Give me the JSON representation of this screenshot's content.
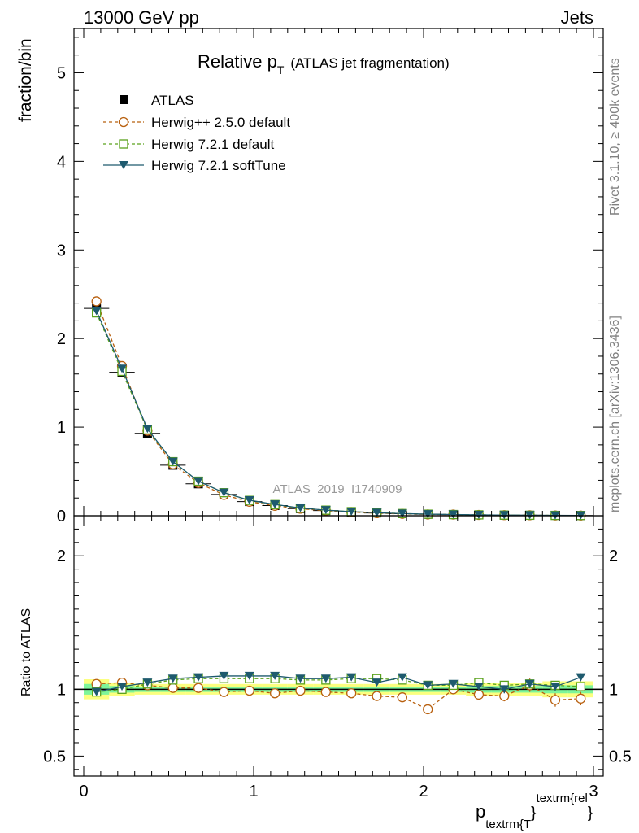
{
  "header": {
    "left": "13000 GeV pp",
    "right": "Jets",
    "side_label_1": "Rivet 3.1.10, ≥ 400k events",
    "side_label_2": "mcplots.cern.ch [arXiv:1306.3436]",
    "watermark": "ATLAS_2019_I1740909"
  },
  "colors": {
    "atlas": "#000000",
    "herwigpp": "#b8600f",
    "herwig721": "#5aa21c",
    "softtune": "#1e5a6e",
    "band_yellow": "#fbff7f",
    "band_green": "#7df59a"
  },
  "chart_data": [
    {
      "type": "line",
      "title": "Relative p",
      "title_sub": "T",
      "title_suffix": "(ATLAS jet fragmentation)",
      "ylabel": "fraction/bin",
      "ylim": [
        0,
        5.5
      ],
      "yticks": [
        0,
        1,
        2,
        3,
        4,
        5
      ],
      "ytick_labels": [
        "0",
        "1",
        "2",
        "3",
        "4",
        "5"
      ],
      "xlim": [
        0,
        3
      ],
      "x": [
        0.075,
        0.225,
        0.375,
        0.525,
        0.675,
        0.825,
        0.975,
        1.125,
        1.275,
        1.425,
        1.575,
        1.725,
        1.875,
        2.025,
        2.175,
        2.325,
        2.475,
        2.625,
        2.775,
        2.925
      ],
      "series": [
        {
          "name": "ATLAS",
          "style": "data",
          "values": [
            2.34,
            1.62,
            0.93,
            0.57,
            0.36,
            0.24,
            0.16,
            0.115,
            0.08,
            0.058,
            0.042,
            0.031,
            0.023,
            0.017,
            0.013,
            0.0095,
            0.007,
            0.0052,
            0.0038,
            0.0028
          ]
        },
        {
          "name": "Herwig++ 2.5.0 default",
          "style": "dashed-circle",
          "values": [
            2.42,
            1.69,
            0.96,
            0.58,
            0.37,
            0.235,
            0.158,
            0.112,
            0.079,
            0.057,
            0.041,
            0.029,
            0.021,
            0.0145,
            0.013,
            0.0092,
            0.0067,
            0.0054,
            0.0035,
            0.0026
          ]
        },
        {
          "name": "Herwig 7.2.1 default",
          "style": "dashed-square",
          "values": [
            2.29,
            1.63,
            0.97,
            0.61,
            0.39,
            0.26,
            0.173,
            0.126,
            0.086,
            0.063,
            0.046,
            0.034,
            0.025,
            0.0175,
            0.0135,
            0.0099,
            0.0071,
            0.0055,
            0.0039,
            0.0029
          ]
        },
        {
          "name": "Herwig 7.2.1 softTune",
          "style": "solid-triangle",
          "values": [
            2.31,
            1.66,
            0.98,
            0.61,
            0.39,
            0.26,
            0.175,
            0.127,
            0.087,
            0.063,
            0.046,
            0.033,
            0.024,
            0.0176,
            0.0136,
            0.0097,
            0.0069,
            0.0054,
            0.0038,
            0.003
          ]
        }
      ]
    },
    {
      "type": "line",
      "ylabel": "Ratio to ATLAS",
      "ylim": [
        0.35,
        2.3
      ],
      "yticks": [
        0.5,
        1,
        2
      ],
      "ytick_labels": [
        "0.5",
        "1",
        "2"
      ],
      "xlim": [
        0,
        3
      ],
      "xticks": [
        0,
        1,
        2,
        3
      ],
      "xtick_labels": [
        "0",
        "1",
        "2",
        "3"
      ],
      "xlabel": "p",
      "xlabel_sub": "textrm{T",
      "xlabel_mid": "}",
      "xlabel_sup": "textrm{rel",
      "xlabel_end": "}",
      "x": [
        0.075,
        0.225,
        0.375,
        0.525,
        0.675,
        0.825,
        0.975,
        1.125,
        1.275,
        1.425,
        1.575,
        1.725,
        1.875,
        2.025,
        2.175,
        2.325,
        2.475,
        2.625,
        2.775,
        2.925
      ],
      "band_yellow": [
        0.075,
        0.05,
        0.04,
        0.04,
        0.04,
        0.04,
        0.04,
        0.04,
        0.04,
        0.04,
        0.04,
        0.04,
        0.04,
        0.04,
        0.04,
        0.05,
        0.05,
        0.05,
        0.06,
        0.06
      ],
      "band_green": [
        0.04,
        0.025,
        0.02,
        0.02,
        0.02,
        0.02,
        0.02,
        0.02,
        0.02,
        0.02,
        0.02,
        0.02,
        0.02,
        0.02,
        0.02,
        0.025,
        0.025,
        0.025,
        0.03,
        0.03
      ],
      "series": [
        {
          "name": "Herwig++ 2.5.0 default",
          "style": "dashed-circle",
          "values": [
            1.04,
            1.05,
            1.03,
            1.01,
            1.01,
            0.98,
            0.99,
            0.97,
            0.99,
            0.98,
            0.97,
            0.95,
            0.94,
            0.85,
            1.0,
            0.96,
            0.95,
            1.03,
            0.92,
            0.93
          ],
          "errors": [
            0.01,
            0.01,
            0.01,
            0.01,
            0.01,
            0.01,
            0.01,
            0.01,
            0.01,
            0.015,
            0.015,
            0.02,
            0.025,
            0.03,
            0.03,
            0.03,
            0.04,
            0.05,
            0.05,
            0.05
          ]
        },
        {
          "name": "Herwig 7.2.1 default",
          "style": "dashed-square",
          "values": [
            0.98,
            1.0,
            1.04,
            1.07,
            1.08,
            1.08,
            1.08,
            1.08,
            1.07,
            1.07,
            1.08,
            1.08,
            1.07,
            1.03,
            1.03,
            1.05,
            1.03,
            1.04,
            1.03,
            1.02
          ],
          "errors": [
            0.01,
            0.01,
            0.01,
            0.01,
            0.01,
            0.01,
            0.01,
            0.01,
            0.01,
            0.01,
            0.015,
            0.015,
            0.02,
            0.02,
            0.02,
            0.02,
            0.03,
            0.03,
            0.03,
            0.03
          ]
        },
        {
          "name": "Herwig 7.2.1 softTune",
          "style": "solid-triangle",
          "values": [
            0.98,
            1.02,
            1.05,
            1.08,
            1.09,
            1.1,
            1.1,
            1.1,
            1.08,
            1.08,
            1.09,
            1.05,
            1.09,
            1.03,
            1.04,
            1.02,
            1.0,
            1.04,
            1.02,
            1.09
          ],
          "errors": [
            0.01,
            0.01,
            0.01,
            0.01,
            0.01,
            0.01,
            0.01,
            0.01,
            0.01,
            0.01,
            0.015,
            0.015,
            0.02,
            0.02,
            0.02,
            0.02,
            0.03,
            0.03,
            0.03,
            0.03
          ]
        }
      ]
    }
  ]
}
